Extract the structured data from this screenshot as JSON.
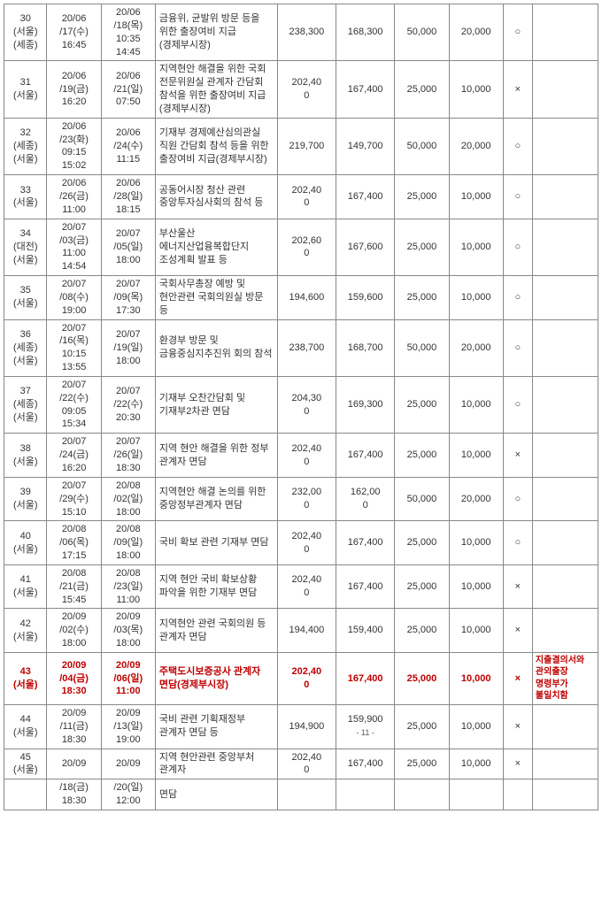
{
  "page_marker": "- 11 -",
  "highlight_color": "#c00000",
  "border_color": "#888888",
  "rows": [
    {
      "n": "30",
      "loc": "(서울)\n(세종)",
      "d1": "20/06\n/17(수)\n16:45",
      "d2": "20/06\n/18(목)\n10:35\n14:45",
      "desc": "금융위, 균발위 방문 등을 위한 출장여비 지급(경제부시장)",
      "a": "238,300",
      "b": "168,300",
      "c": "50,000",
      "d": "20,000",
      "m": "○",
      "note": ""
    },
    {
      "n": "31",
      "loc": "(서울)",
      "d1": "20/06\n/19(금)\n16:20",
      "d2": "20/06\n/21(일)\n07:50",
      "desc": "지역현안 해결을 위한 국회 전문위원실 관계자 간담회 참석을 위한 출장여비 지급(경제부시장)",
      "a": "202,40\n0",
      "b": "167,400",
      "c": "25,000",
      "d": "10,000",
      "m": "×",
      "note": ""
    },
    {
      "n": "32",
      "loc": "(세종)\n(서울)",
      "d1": "20/06\n/23(화)\n09:15\n15:02",
      "d2": "20/06\n/24(수)\n11:15",
      "desc": "기재부 경제예산심의관실 직원 간담회 참석 등을 위한 출장여비 지급(경제부시장)",
      "a": "219,700",
      "b": "149,700",
      "c": "50,000",
      "d": "20,000",
      "m": "○",
      "note": ""
    },
    {
      "n": "33",
      "loc": "(서울)",
      "d1": "20/06\n/26(금)\n11:00",
      "d2": "20/06\n/28(일)\n18:15",
      "desc": "공동어시장 청산 관련 중앙투자심사회의 참석 등",
      "a": "202,40\n0",
      "b": "167,400",
      "c": "25,000",
      "d": "10,000",
      "m": "○",
      "note": ""
    },
    {
      "n": "34",
      "loc": "(대전)\n(서울)",
      "d1": "20/07\n/03(금)\n11:00\n14:54",
      "d2": "20/07\n/05(일)\n18:00",
      "desc": "부산울산 에너지산업융복합단지 조성계획 발표 등",
      "a": "202,60\n0",
      "b": "167,600",
      "c": "25,000",
      "d": "10,000",
      "m": "○",
      "note": ""
    },
    {
      "n": "35",
      "loc": "(서울)",
      "d1": "20/07\n/08(수)\n19:00",
      "d2": "20/07\n/09(목)\n17:30",
      "desc": "국회사무총장 예방 및 현안관련 국회의원실 방문 등",
      "a": "194,600",
      "b": "159,600",
      "c": "25,000",
      "d": "10,000",
      "m": "○",
      "note": ""
    },
    {
      "n": "36",
      "loc": "(세종)\n(서울)",
      "d1": "20/07\n/16(목)\n10:15\n13:55",
      "d2": "20/07\n/19(일)\n18:00",
      "desc": "환경부 방문 및 금융중심지추진위 회의 참석",
      "a": "238,700",
      "b": "168,700",
      "c": "50,000",
      "d": "20,000",
      "m": "○",
      "note": ""
    },
    {
      "n": "37",
      "loc": "(세종)\n(서울)",
      "d1": "20/07\n/22(수)\n09:05\n15:34",
      "d2": "20/07\n/22(수)\n20:30",
      "desc": "기재부 오찬간담회 및 기재부2차관 면담",
      "a": "204,30\n0",
      "b": "169,300",
      "c": "25,000",
      "d": "10,000",
      "m": "○",
      "note": ""
    },
    {
      "n": "38",
      "loc": "(서울)",
      "d1": "20/07\n/24(금)\n16:20",
      "d2": "20/07\n/26(일)\n18:30",
      "desc": "지역 현안 해결을 위한 정부 관계자 면담",
      "a": "202,40\n0",
      "b": "167,400",
      "c": "25,000",
      "d": "10,000",
      "m": "×",
      "note": ""
    },
    {
      "n": "39",
      "loc": "(서울)",
      "d1": "20/07\n/29(수)\n15:10",
      "d2": "20/08\n/02(일)\n18:00",
      "desc": "지역현안 해결 논의를 위한 중앙정부관계자 면담",
      "a": "232,00\n0",
      "b": "162,00\n0",
      "c": "50,000",
      "d": "20,000",
      "m": "○",
      "note": ""
    },
    {
      "n": "40",
      "loc": "(서울)",
      "d1": "20/08\n/06(목)\n17:15",
      "d2": "20/08\n/09(일)\n18:00",
      "desc": "국비 확보 관련 기재부 면담",
      "a": "202,40\n0",
      "b": "167,400",
      "c": "25,000",
      "d": "10,000",
      "m": "○",
      "note": ""
    },
    {
      "n": "41",
      "loc": "(서울)",
      "d1": "20/08\n/21(금)\n15:45",
      "d2": "20/08\n/23(일)\n11:00",
      "desc": "지역 현안 국비 확보상황 파악을 위한 기재부 면담",
      "a": "202,40\n0",
      "b": "167,400",
      "c": "25,000",
      "d": "10,000",
      "m": "×",
      "note": ""
    },
    {
      "n": "42",
      "loc": "(서울)",
      "d1": "20/09\n/02(수)\n18:00",
      "d2": "20/09\n/03(목)\n18:00",
      "desc": "지역현안 관련 국회의원 등 관계자 면담",
      "a": "194,400",
      "b": "159,400",
      "c": "25,000",
      "d": "10,000",
      "m": "×",
      "note": ""
    },
    {
      "n": "43",
      "loc": "(서울)",
      "d1": "20/09\n/04(금)\n18:30",
      "d2": "20/09\n/06(일)\n11:00",
      "desc": "주택도시보증공사 관계자 면담(경제부시장)",
      "a": "202,40\n0",
      "b": "167,400",
      "c": "25,000",
      "d": "10,000",
      "m": "×",
      "note": "지출결의서와 관외출장 명령부가 불일치함",
      "hl": true
    },
    {
      "n": "44",
      "loc": "(서울)",
      "d1": "20/09\n/11(금)\n18:30",
      "d2": "20/09\n/13(일)\n19:00",
      "desc": "국비 관련 기획재정부 관계자 면담 등",
      "a": "194,900",
      "b": "159,900",
      "c": "25,000",
      "d": "10,000",
      "m": "×",
      "note": ""
    },
    {
      "n": "45",
      "loc": "(서울)",
      "d1": "20/09",
      "d2": "20/09",
      "desc": "지역 현안관련 중앙부처 관계자",
      "a": "202,40\n0",
      "b": "167,400",
      "c": "25,000",
      "d": "10,000",
      "m": "×",
      "note": ""
    }
  ],
  "tail": {
    "d1": "/18(금)\n18:30",
    "d2": "/20(일)\n12:00",
    "desc": "면담"
  }
}
